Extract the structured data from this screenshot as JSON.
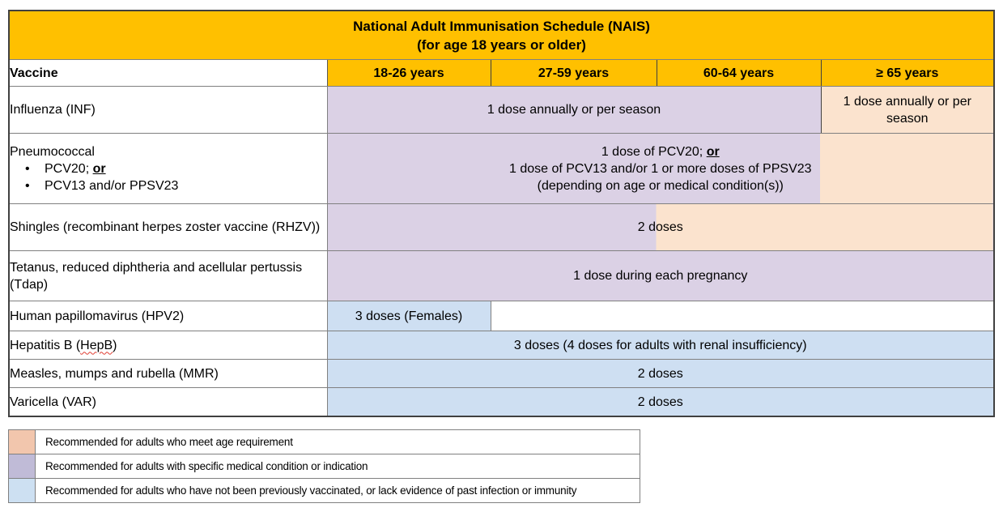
{
  "title": {
    "line1": "National Adult Immunisation Schedule (NAIS)",
    "line2": "(for age 18 years or older)"
  },
  "columns": {
    "vaccine": "Vaccine",
    "age1": "18-26 years",
    "age2": "27-59 years",
    "age3": "60-64 years",
    "age4": "≥ 65 years"
  },
  "rows": {
    "influenza": {
      "vaccine": "Influenza (INF)",
      "dose_18_64": "1 dose annually or per season",
      "dose_65": "1 dose annually or per season"
    },
    "pneumococcal": {
      "vaccine": "Pneumococcal",
      "bullet_glyph": "•",
      "bullet1_pre": "PCV20; ",
      "bullet1_or": "or",
      "bullet2": "PCV13 and/or PPSV23",
      "dose_line1_pre": "1 dose of PCV20; ",
      "dose_line1_or": "or",
      "dose_line2": "1 dose of PCV13 and/or 1 or more doses of PPSV23",
      "dose_line3": "(depending on age or medical condition(s))"
    },
    "shingles": {
      "vaccine": "Shingles (recombinant herpes zoster vaccine (RHZV))",
      "dose": "2 doses"
    },
    "tdap": {
      "vaccine": "Tetanus, reduced diphtheria and acellular pertussis (Tdap)",
      "dose": "1 dose during each pregnancy"
    },
    "hpv": {
      "vaccine": "Human papillomavirus (HPV2)",
      "dose_18_26": "3 doses (Females)"
    },
    "hepb": {
      "vaccine_pre": "Hepatitis B (",
      "vaccine_abbr": "HepB",
      "vaccine_post": ")",
      "dose": "3 doses (4 doses for adults with renal insufficiency)"
    },
    "mmr": {
      "vaccine": "Measles, mumps and rubella (MMR)",
      "dose": "2 doses"
    },
    "varicella": {
      "vaccine": "Varicella (VAR)",
      "dose": "2 doses"
    }
  },
  "legend": {
    "items": [
      {
        "label": "Recommended for adults who meet age requirement",
        "swatch": "#F2C6AD"
      },
      {
        "label": "Recommended for adults with specific medical condition or indication",
        "swatch": "#C0BBD7"
      },
      {
        "label": "Recommended for adults who have not been previously vaccinated, or lack evidence of past infection or immunity",
        "swatch": "#CDE0F2"
      }
    ]
  },
  "colors": {
    "header_orange": "#FFC000",
    "cell_purple": "#DBD1E5",
    "cell_peach": "#FBE3CE",
    "cell_blue": "#CEDFF2"
  }
}
